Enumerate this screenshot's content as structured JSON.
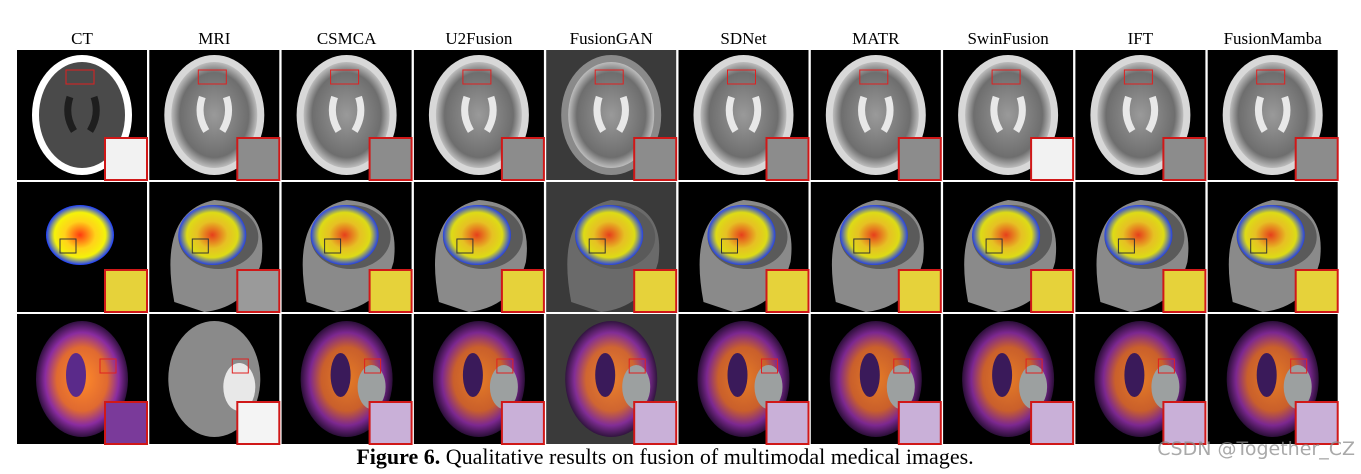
{
  "columns": [
    "CT",
    "MRI",
    "CSMCA",
    "U2Fusion",
    "FusionGAN",
    "SDNet",
    "MATR",
    "SwinFusion",
    "IFT",
    "FusionMamba"
  ],
  "caption": {
    "label": "Figure 6.",
    "text": "Qualitative results on fusion of multimodal medical images."
  },
  "watermark": "CSDN @Together_CZ"
}
